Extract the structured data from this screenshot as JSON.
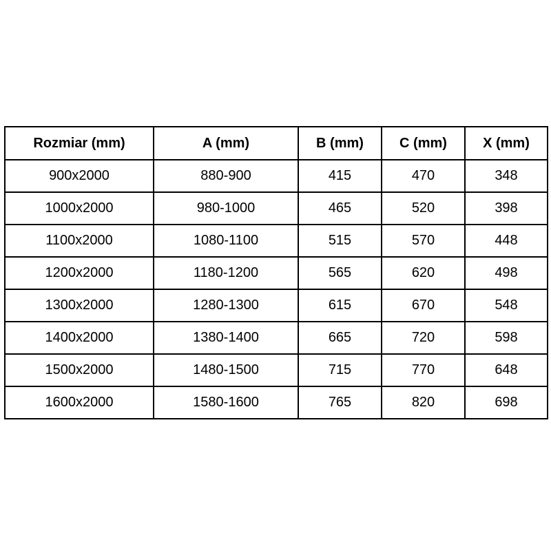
{
  "chart_data": {
    "type": "table",
    "title": "",
    "columns": [
      "Rozmiar (mm)",
      "A (mm)",
      "B (mm)",
      "C (mm)",
      "X (mm)"
    ],
    "rows": [
      [
        "900x2000",
        "880-900",
        "415",
        "470",
        "348"
      ],
      [
        "1000x2000",
        "980-1000",
        "465",
        "520",
        "398"
      ],
      [
        "1100x2000",
        "1080-1100",
        "515",
        "570",
        "448"
      ],
      [
        "1200x2000",
        "1180-1200",
        "565",
        "620",
        "498"
      ],
      [
        "1300x2000",
        "1280-1300",
        "615",
        "670",
        "548"
      ],
      [
        "1400x2000",
        "1380-1400",
        "665",
        "720",
        "598"
      ],
      [
        "1500x2000",
        "1480-1500",
        "715",
        "770",
        "648"
      ],
      [
        "1600x2000",
        "1580-1600",
        "765",
        "820",
        "698"
      ]
    ],
    "layout": {
      "border_color": "#000000",
      "text_color": "#000000",
      "background_color": "#ffffff",
      "header_bold": true,
      "cell_alignment": "center"
    }
  }
}
